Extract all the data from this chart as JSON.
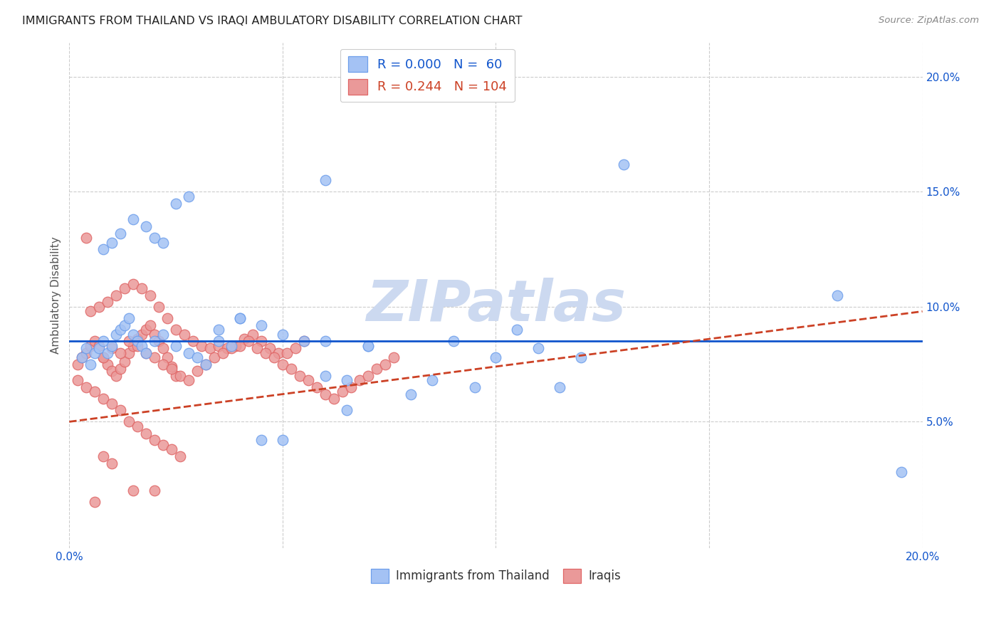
{
  "title": "IMMIGRANTS FROM THAILAND VS IRAQI AMBULATORY DISABILITY CORRELATION CHART",
  "source": "Source: ZipAtlas.com",
  "ylabel": "Ambulatory Disability",
  "xlim": [
    0.0,
    0.2
  ],
  "ylim": [
    -0.005,
    0.215
  ],
  "yticks": [
    0.05,
    0.1,
    0.15,
    0.2
  ],
  "ytick_labels": [
    "5.0%",
    "10.0%",
    "15.0%",
    "20.0%"
  ],
  "xticks": [
    0.0,
    0.05,
    0.1,
    0.15,
    0.2
  ],
  "legend_labels": [
    "Immigrants from Thailand",
    "Iraqis"
  ],
  "blue_scatter_x": [
    0.003,
    0.004,
    0.005,
    0.006,
    0.007,
    0.008,
    0.009,
    0.01,
    0.011,
    0.012,
    0.013,
    0.014,
    0.015,
    0.016,
    0.017,
    0.018,
    0.02,
    0.022,
    0.025,
    0.028,
    0.03,
    0.032,
    0.035,
    0.038,
    0.04,
    0.045,
    0.05,
    0.055,
    0.06,
    0.065,
    0.07,
    0.008,
    0.01,
    0.012,
    0.015,
    0.018,
    0.02,
    0.022,
    0.025,
    0.028,
    0.035,
    0.04,
    0.045,
    0.05,
    0.06,
    0.065,
    0.07,
    0.08,
    0.085,
    0.09,
    0.095,
    0.1,
    0.105,
    0.11,
    0.115,
    0.12,
    0.06,
    0.18,
    0.195,
    0.13
  ],
  "blue_scatter_y": [
    0.078,
    0.082,
    0.075,
    0.08,
    0.082,
    0.085,
    0.08,
    0.083,
    0.088,
    0.09,
    0.092,
    0.095,
    0.088,
    0.085,
    0.083,
    0.08,
    0.085,
    0.088,
    0.083,
    0.08,
    0.078,
    0.075,
    0.085,
    0.083,
    0.095,
    0.092,
    0.088,
    0.085,
    0.07,
    0.068,
    0.083,
    0.125,
    0.128,
    0.132,
    0.138,
    0.135,
    0.13,
    0.128,
    0.145,
    0.148,
    0.09,
    0.095,
    0.042,
    0.042,
    0.085,
    0.055,
    0.083,
    0.062,
    0.068,
    0.085,
    0.065,
    0.078,
    0.09,
    0.082,
    0.065,
    0.078,
    0.155,
    0.105,
    0.028,
    0.162
  ],
  "pink_scatter_x": [
    0.002,
    0.003,
    0.004,
    0.005,
    0.006,
    0.007,
    0.008,
    0.009,
    0.01,
    0.011,
    0.012,
    0.013,
    0.014,
    0.015,
    0.016,
    0.017,
    0.018,
    0.019,
    0.02,
    0.021,
    0.022,
    0.023,
    0.024,
    0.025,
    0.005,
    0.007,
    0.009,
    0.011,
    0.013,
    0.015,
    0.017,
    0.019,
    0.021,
    0.023,
    0.025,
    0.027,
    0.029,
    0.031,
    0.033,
    0.035,
    0.037,
    0.039,
    0.041,
    0.043,
    0.045,
    0.047,
    0.049,
    0.051,
    0.053,
    0.055,
    0.008,
    0.01,
    0.012,
    0.014,
    0.016,
    0.018,
    0.02,
    0.022,
    0.024,
    0.026,
    0.028,
    0.03,
    0.032,
    0.034,
    0.036,
    0.038,
    0.04,
    0.042,
    0.044,
    0.046,
    0.048,
    0.05,
    0.052,
    0.054,
    0.056,
    0.058,
    0.06,
    0.062,
    0.064,
    0.066,
    0.068,
    0.07,
    0.072,
    0.074,
    0.076,
    0.002,
    0.004,
    0.006,
    0.008,
    0.01,
    0.012,
    0.014,
    0.016,
    0.018,
    0.02,
    0.022,
    0.024,
    0.026,
    0.004,
    0.006,
    0.008,
    0.01,
    0.015,
    0.02
  ],
  "pink_scatter_y": [
    0.075,
    0.078,
    0.08,
    0.083,
    0.085,
    0.083,
    0.078,
    0.075,
    0.072,
    0.07,
    0.073,
    0.076,
    0.08,
    0.083,
    0.086,
    0.088,
    0.09,
    0.092,
    0.088,
    0.085,
    0.082,
    0.078,
    0.074,
    0.07,
    0.098,
    0.1,
    0.102,
    0.105,
    0.108,
    0.11,
    0.108,
    0.105,
    0.1,
    0.095,
    0.09,
    0.088,
    0.085,
    0.083,
    0.082,
    0.083,
    0.082,
    0.083,
    0.086,
    0.088,
    0.085,
    0.082,
    0.08,
    0.08,
    0.082,
    0.085,
    0.078,
    0.082,
    0.08,
    0.085,
    0.083,
    0.08,
    0.078,
    0.075,
    0.073,
    0.07,
    0.068,
    0.072,
    0.075,
    0.078,
    0.08,
    0.082,
    0.083,
    0.085,
    0.082,
    0.08,
    0.078,
    0.075,
    0.073,
    0.07,
    0.068,
    0.065,
    0.062,
    0.06,
    0.063,
    0.065,
    0.068,
    0.07,
    0.073,
    0.075,
    0.078,
    0.068,
    0.065,
    0.063,
    0.06,
    0.058,
    0.055,
    0.05,
    0.048,
    0.045,
    0.042,
    0.04,
    0.038,
    0.035,
    0.13,
    0.015,
    0.035,
    0.032,
    0.02,
    0.02
  ],
  "blue_line_x": [
    0.0,
    0.2
  ],
  "blue_line_y": [
    0.085,
    0.085
  ],
  "pink_line_x": [
    0.0,
    0.2
  ],
  "pink_line_y": [
    0.05,
    0.098
  ],
  "blue_color": "#a4c2f4",
  "blue_edge_color": "#6d9eeb",
  "pink_color": "#ea9999",
  "pink_edge_color": "#e06666",
  "blue_line_color": "#1155cc",
  "pink_line_color": "#cc4125",
  "watermark": "ZIPatlas",
  "watermark_color": "#ccd9f0",
  "bg_color": "#ffffff",
  "grid_color": "#cccccc"
}
